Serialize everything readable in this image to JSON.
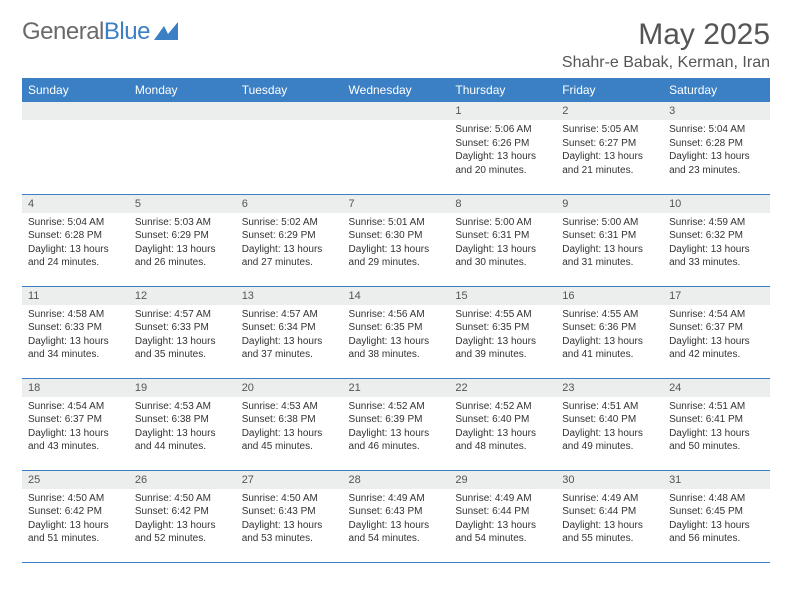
{
  "logo": {
    "name_gray": "General",
    "name_blue": "Blue"
  },
  "title": "May 2025",
  "location": "Shahr-e Babak, Kerman, Iran",
  "colors": {
    "header_bg": "#3b7fc4",
    "row_band": "#eceded",
    "text": "#333333",
    "title_text": "#555555"
  },
  "weekdays": [
    "Sunday",
    "Monday",
    "Tuesday",
    "Wednesday",
    "Thursday",
    "Friday",
    "Saturday"
  ],
  "weeks": [
    [
      null,
      null,
      null,
      null,
      {
        "n": "1",
        "sr": "Sunrise: 5:06 AM",
        "ss": "Sunset: 6:26 PM",
        "dl": "Daylight: 13 hours and 20 minutes."
      },
      {
        "n": "2",
        "sr": "Sunrise: 5:05 AM",
        "ss": "Sunset: 6:27 PM",
        "dl": "Daylight: 13 hours and 21 minutes."
      },
      {
        "n": "3",
        "sr": "Sunrise: 5:04 AM",
        "ss": "Sunset: 6:28 PM",
        "dl": "Daylight: 13 hours and 23 minutes."
      }
    ],
    [
      {
        "n": "4",
        "sr": "Sunrise: 5:04 AM",
        "ss": "Sunset: 6:28 PM",
        "dl": "Daylight: 13 hours and 24 minutes."
      },
      {
        "n": "5",
        "sr": "Sunrise: 5:03 AM",
        "ss": "Sunset: 6:29 PM",
        "dl": "Daylight: 13 hours and 26 minutes."
      },
      {
        "n": "6",
        "sr": "Sunrise: 5:02 AM",
        "ss": "Sunset: 6:29 PM",
        "dl": "Daylight: 13 hours and 27 minutes."
      },
      {
        "n": "7",
        "sr": "Sunrise: 5:01 AM",
        "ss": "Sunset: 6:30 PM",
        "dl": "Daylight: 13 hours and 29 minutes."
      },
      {
        "n": "8",
        "sr": "Sunrise: 5:00 AM",
        "ss": "Sunset: 6:31 PM",
        "dl": "Daylight: 13 hours and 30 minutes."
      },
      {
        "n": "9",
        "sr": "Sunrise: 5:00 AM",
        "ss": "Sunset: 6:31 PM",
        "dl": "Daylight: 13 hours and 31 minutes."
      },
      {
        "n": "10",
        "sr": "Sunrise: 4:59 AM",
        "ss": "Sunset: 6:32 PM",
        "dl": "Daylight: 13 hours and 33 minutes."
      }
    ],
    [
      {
        "n": "11",
        "sr": "Sunrise: 4:58 AM",
        "ss": "Sunset: 6:33 PM",
        "dl": "Daylight: 13 hours and 34 minutes."
      },
      {
        "n": "12",
        "sr": "Sunrise: 4:57 AM",
        "ss": "Sunset: 6:33 PM",
        "dl": "Daylight: 13 hours and 35 minutes."
      },
      {
        "n": "13",
        "sr": "Sunrise: 4:57 AM",
        "ss": "Sunset: 6:34 PM",
        "dl": "Daylight: 13 hours and 37 minutes."
      },
      {
        "n": "14",
        "sr": "Sunrise: 4:56 AM",
        "ss": "Sunset: 6:35 PM",
        "dl": "Daylight: 13 hours and 38 minutes."
      },
      {
        "n": "15",
        "sr": "Sunrise: 4:55 AM",
        "ss": "Sunset: 6:35 PM",
        "dl": "Daylight: 13 hours and 39 minutes."
      },
      {
        "n": "16",
        "sr": "Sunrise: 4:55 AM",
        "ss": "Sunset: 6:36 PM",
        "dl": "Daylight: 13 hours and 41 minutes."
      },
      {
        "n": "17",
        "sr": "Sunrise: 4:54 AM",
        "ss": "Sunset: 6:37 PM",
        "dl": "Daylight: 13 hours and 42 minutes."
      }
    ],
    [
      {
        "n": "18",
        "sr": "Sunrise: 4:54 AM",
        "ss": "Sunset: 6:37 PM",
        "dl": "Daylight: 13 hours and 43 minutes."
      },
      {
        "n": "19",
        "sr": "Sunrise: 4:53 AM",
        "ss": "Sunset: 6:38 PM",
        "dl": "Daylight: 13 hours and 44 minutes."
      },
      {
        "n": "20",
        "sr": "Sunrise: 4:53 AM",
        "ss": "Sunset: 6:38 PM",
        "dl": "Daylight: 13 hours and 45 minutes."
      },
      {
        "n": "21",
        "sr": "Sunrise: 4:52 AM",
        "ss": "Sunset: 6:39 PM",
        "dl": "Daylight: 13 hours and 46 minutes."
      },
      {
        "n": "22",
        "sr": "Sunrise: 4:52 AM",
        "ss": "Sunset: 6:40 PM",
        "dl": "Daylight: 13 hours and 48 minutes."
      },
      {
        "n": "23",
        "sr": "Sunrise: 4:51 AM",
        "ss": "Sunset: 6:40 PM",
        "dl": "Daylight: 13 hours and 49 minutes."
      },
      {
        "n": "24",
        "sr": "Sunrise: 4:51 AM",
        "ss": "Sunset: 6:41 PM",
        "dl": "Daylight: 13 hours and 50 minutes."
      }
    ],
    [
      {
        "n": "25",
        "sr": "Sunrise: 4:50 AM",
        "ss": "Sunset: 6:42 PM",
        "dl": "Daylight: 13 hours and 51 minutes."
      },
      {
        "n": "26",
        "sr": "Sunrise: 4:50 AM",
        "ss": "Sunset: 6:42 PM",
        "dl": "Daylight: 13 hours and 52 minutes."
      },
      {
        "n": "27",
        "sr": "Sunrise: 4:50 AM",
        "ss": "Sunset: 6:43 PM",
        "dl": "Daylight: 13 hours and 53 minutes."
      },
      {
        "n": "28",
        "sr": "Sunrise: 4:49 AM",
        "ss": "Sunset: 6:43 PM",
        "dl": "Daylight: 13 hours and 54 minutes."
      },
      {
        "n": "29",
        "sr": "Sunrise: 4:49 AM",
        "ss": "Sunset: 6:44 PM",
        "dl": "Daylight: 13 hours and 54 minutes."
      },
      {
        "n": "30",
        "sr": "Sunrise: 4:49 AM",
        "ss": "Sunset: 6:44 PM",
        "dl": "Daylight: 13 hours and 55 minutes."
      },
      {
        "n": "31",
        "sr": "Sunrise: 4:48 AM",
        "ss": "Sunset: 6:45 PM",
        "dl": "Daylight: 13 hours and 56 minutes."
      }
    ]
  ]
}
